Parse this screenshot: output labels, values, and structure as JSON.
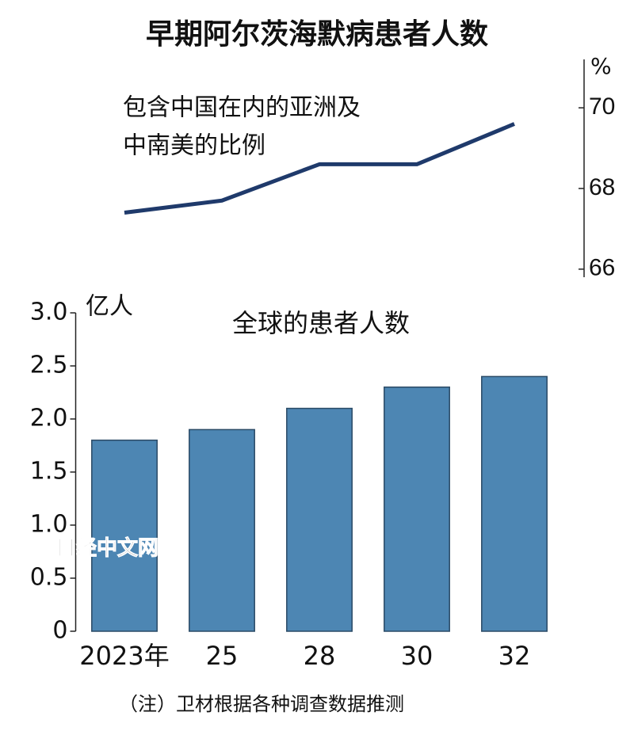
{
  "title": "早期阿尔茨海默病患者人数",
  "note": "（注）卫材根据各种调查数据推测",
  "watermark": "日经中文网",
  "chart_data": [
    {
      "type": "line",
      "annotation": [
        "包含中国在内的亚洲及",
        "中南美的比例"
      ],
      "unit": "%",
      "values": [
        67.4,
        67.7,
        68.6,
        68.6,
        69.6
      ],
      "color": "#1f3a6b",
      "ylim": [
        65.8,
        71.2
      ],
      "yticks": [
        66,
        68,
        70
      ]
    },
    {
      "type": "bar",
      "subtitle": "全球的患者人数",
      "unit": "亿人",
      "categories": [
        "2023年",
        "25",
        "28",
        "30",
        "32"
      ],
      "values": [
        1.8,
        1.9,
        2.1,
        2.3,
        2.4
      ],
      "color": "#4d86b3",
      "ylim": [
        0,
        3
      ],
      "yticks": [
        0,
        0.5,
        {
          "value": 1,
          "label": "1.0"
        },
        1.5,
        {
          "value": 2,
          "label": "2.0"
        },
        2.5,
        {
          "value": 3,
          "label": "3.0"
        }
      ]
    }
  ]
}
